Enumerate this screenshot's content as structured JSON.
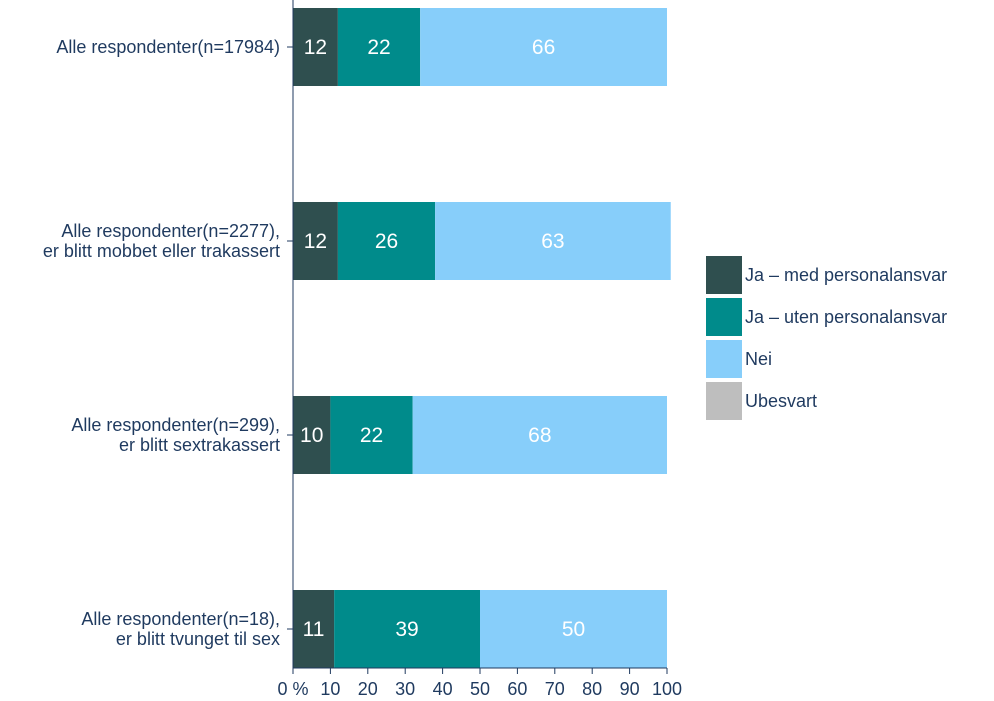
{
  "chart_data": {
    "type": "bar",
    "orientation": "horizontal",
    "stacked": true,
    "categories": [
      [
        "Alle respondenter(n=17984)"
      ],
      [
        "Alle respondenter(n=2277),",
        "er blitt mobbet eller trakassert"
      ],
      [
        "Alle respondenter(n=299),",
        "er blitt sextrakassert"
      ],
      [
        "Alle respondenter(n=18),",
        "er blitt tvunget til sex"
      ]
    ],
    "series": [
      {
        "name": "Ja – med personalansvar",
        "color": "#2f4f4f",
        "values": [
          12,
          12,
          10,
          11
        ]
      },
      {
        "name": "Ja – uten personalansvar",
        "color": "#008b8b",
        "values": [
          22,
          26,
          22,
          39
        ]
      },
      {
        "name": "Nei",
        "color": "#87cefa",
        "values": [
          66,
          63,
          68,
          50
        ]
      },
      {
        "name": "Ubesvart",
        "color": "#bebebe",
        "values": [
          0,
          0,
          0,
          0
        ]
      }
    ],
    "xlim": [
      0,
      100
    ],
    "xticks": [
      "0 %",
      "10",
      "20",
      "30",
      "40",
      "50",
      "60",
      "70",
      "80",
      "90",
      "100"
    ],
    "legend_position": "right",
    "grid": false
  }
}
